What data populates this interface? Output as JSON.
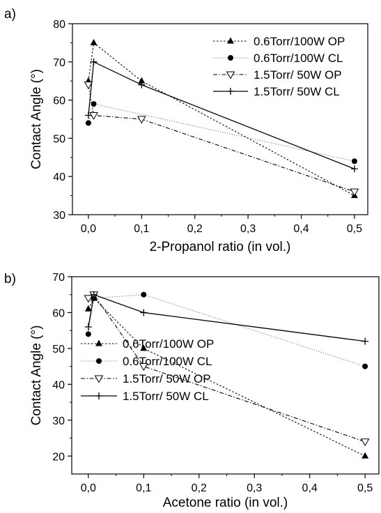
{
  "chart_data": [
    {
      "panel": "a)",
      "type": "line",
      "xlabel": "2-Propanol ratio (in vol.)",
      "ylabel": "Contact Angle (°)",
      "xlim": [
        -0.03,
        0.525
      ],
      "ylim": [
        30,
        80
      ],
      "xticks": [
        0.0,
        0.1,
        0.2,
        0.3,
        0.4,
        0.5
      ],
      "xtick_labels": [
        "0,0",
        "0,1",
        "0,2",
        "0,3",
        "0,4",
        "0,5"
      ],
      "yticks": [
        30,
        40,
        50,
        60,
        70,
        80
      ],
      "ytick_labels": [
        "30",
        "40",
        "50",
        "60",
        "70",
        "80"
      ],
      "legend_position": "top-right",
      "grid": false,
      "series": [
        {
          "name": "0.6Torr/100W OP",
          "marker": "triangle-filled",
          "line": "dotted",
          "points": [
            [
              0.0,
              65
            ],
            [
              0.01,
              75
            ],
            [
              0.1,
              65
            ],
            [
              0.5,
              35
            ]
          ]
        },
        {
          "name": "0.6Torr/100W CL",
          "marker": "circle-filled",
          "line": "dotted-light",
          "points": [
            [
              0.0,
              54
            ],
            [
              0.01,
              59
            ],
            [
              0.5,
              44
            ]
          ]
        },
        {
          "name": "1.5Torr/ 50W OP",
          "marker": "triangle-down-open",
          "line": "dash-dot",
          "points": [
            [
              0.0,
              64
            ],
            [
              0.01,
              56
            ],
            [
              0.1,
              55
            ],
            [
              0.5,
              36
            ]
          ]
        },
        {
          "name": "1.5Torr/ 50W CL",
          "marker": "plus",
          "line": "solid",
          "points": [
            [
              0.0,
              56
            ],
            [
              0.01,
              70
            ],
            [
              0.1,
              64
            ],
            [
              0.5,
              42
            ]
          ]
        }
      ]
    },
    {
      "panel": "b)",
      "type": "line",
      "xlabel": "Acetone ratio (in vol.)",
      "ylabel": "Contact Angle (°)",
      "xlim": [
        -0.03,
        0.525
      ],
      "ylim": [
        15,
        70
      ],
      "xticks": [
        0.0,
        0.1,
        0.2,
        0.3,
        0.4,
        0.5
      ],
      "xtick_labels": [
        "0,0",
        "0,1",
        "0,2",
        "0,3",
        "0,4",
        "0,5"
      ],
      "yticks": [
        20,
        30,
        40,
        50,
        60,
        70
      ],
      "ytick_labels": [
        "20",
        "30",
        "40",
        "50",
        "60",
        "70"
      ],
      "legend_position": "bottom-left",
      "grid": false,
      "series": [
        {
          "name": "0.6Torr/100W OP",
          "marker": "triangle-filled",
          "line": "dotted",
          "points": [
            [
              0.0,
              61
            ],
            [
              0.01,
              64
            ],
            [
              0.1,
              50
            ],
            [
              0.5,
              20
            ]
          ]
        },
        {
          "name": "0.6Torr/100W CL",
          "marker": "circle-filled",
          "line": "dotted-light",
          "points": [
            [
              0.0,
              54
            ],
            [
              0.01,
              64
            ],
            [
              0.1,
              65
            ],
            [
              0.5,
              45
            ]
          ]
        },
        {
          "name": "1.5Torr/ 50W OP",
          "marker": "triangle-down-open",
          "line": "dash-dot",
          "points": [
            [
              0.0,
              64
            ],
            [
              0.01,
              65
            ],
            [
              0.1,
              45
            ],
            [
              0.5,
              24
            ]
          ]
        },
        {
          "name": "1.5Torr/ 50W CL",
          "marker": "plus",
          "line": "solid",
          "points": [
            [
              0.0,
              56
            ],
            [
              0.01,
              65
            ],
            [
              0.1,
              60
            ],
            [
              0.5,
              52
            ]
          ]
        }
      ]
    }
  ]
}
